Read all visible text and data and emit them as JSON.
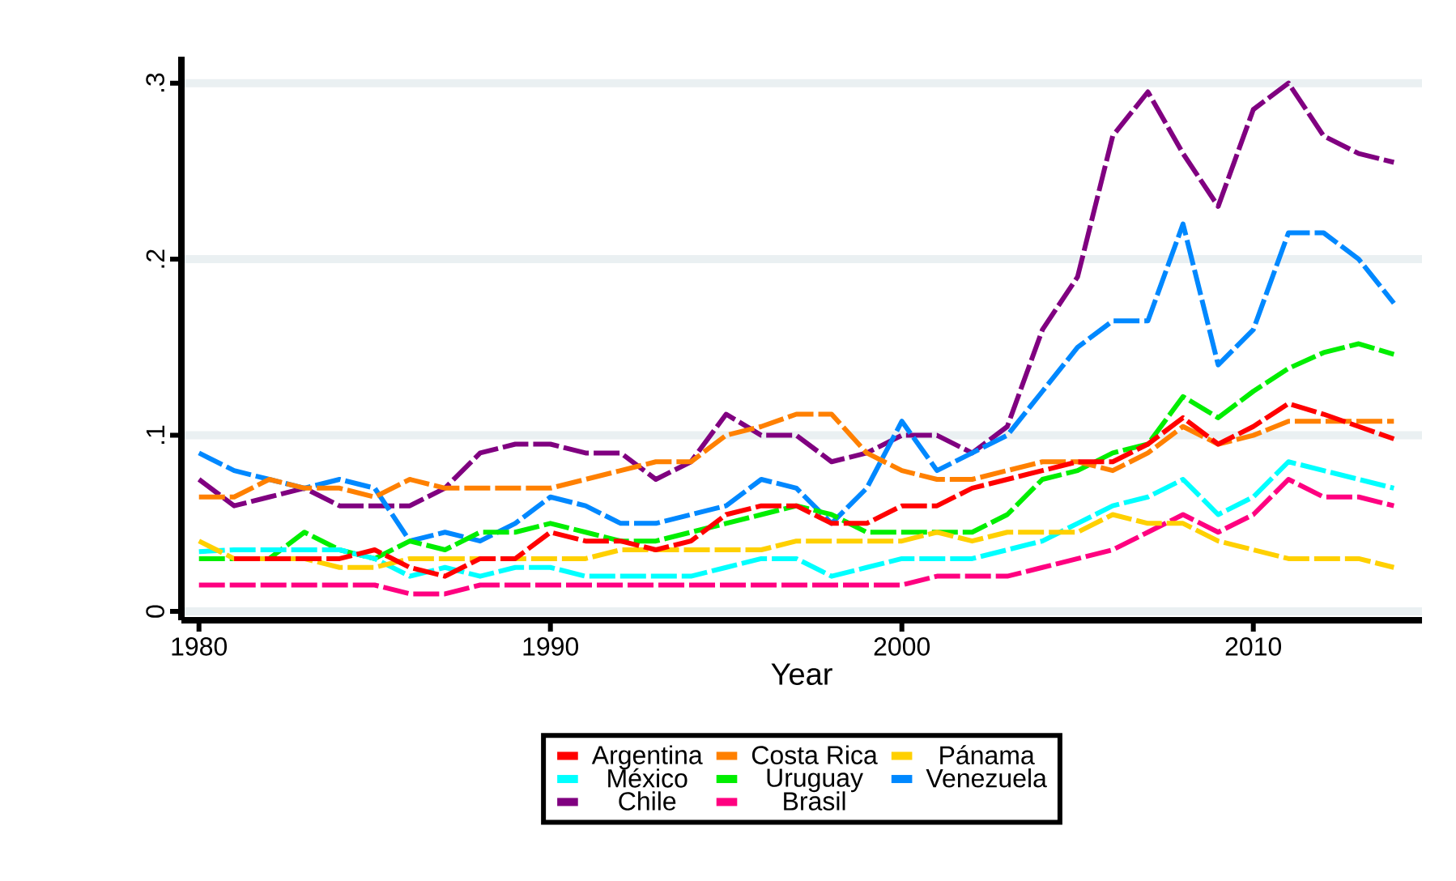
{
  "chart_data": {
    "type": "line",
    "xlabel": "Year",
    "x": [
      1980,
      1981,
      1982,
      1983,
      1984,
      1985,
      1986,
      1987,
      1988,
      1989,
      1990,
      1991,
      1992,
      1993,
      1994,
      1995,
      1996,
      1997,
      1998,
      1999,
      2000,
      2001,
      2002,
      2003,
      2004,
      2005,
      2006,
      2007,
      2008,
      2009,
      2010,
      2011,
      2012,
      2013,
      2014
    ],
    "xlim": [
      1979.5,
      2014.8
    ],
    "xticks": [
      1980,
      1990,
      2000,
      2010
    ],
    "ylim": [
      -0.005,
      0.315
    ],
    "yticks": [
      {
        "value": 0,
        "label": "0"
      },
      {
        "value": 0.1,
        "label": ".1"
      },
      {
        "value": 0.2,
        "label": ".2"
      },
      {
        "value": 0.3,
        "label": ".3"
      }
    ],
    "grid": "y",
    "legend": "bottom",
    "line_style": "dashed",
    "series": [
      {
        "name": "Costa Rica",
        "color": "#ff8000",
        "values": [
          0.065,
          0.065,
          0.075,
          0.07,
          0.07,
          0.065,
          0.075,
          0.07,
          0.07,
          0.07,
          0.07,
          0.075,
          0.08,
          0.085,
          0.085,
          0.1,
          0.105,
          0.112,
          0.112,
          0.09,
          0.08,
          0.075,
          0.075,
          0.08,
          0.085,
          0.085,
          0.08,
          0.09,
          0.105,
          0.095,
          0.1,
          0.108,
          0.108,
          0.108,
          0.108
        ]
      },
      {
        "name": "Pánama",
        "color": "#ffd000",
        "values": [
          0.04,
          0.03,
          0.03,
          0.03,
          0.025,
          0.025,
          0.03,
          0.03,
          0.03,
          0.03,
          0.03,
          0.03,
          0.035,
          0.035,
          0.035,
          0.035,
          0.035,
          0.04,
          0.04,
          0.04,
          0.04,
          0.045,
          0.04,
          0.045,
          0.045,
          0.045,
          0.055,
          0.05,
          0.05,
          0.04,
          0.035,
          0.03,
          0.03,
          0.03,
          0.025
        ]
      },
      {
        "name": "Argentina",
        "color": "#ff0000",
        "values": [
          null,
          0.03,
          0.03,
          0.03,
          0.03,
          0.035,
          0.025,
          0.02,
          0.03,
          0.03,
          0.045,
          0.04,
          0.04,
          0.035,
          0.04,
          0.055,
          0.06,
          0.06,
          0.05,
          0.05,
          0.06,
          0.06,
          0.07,
          0.075,
          0.08,
          0.085,
          0.085,
          0.095,
          0.11,
          0.095,
          0.105,
          0.118,
          0.112,
          0.105,
          0.098
        ]
      },
      {
        "name": "México",
        "color": "#00ffff",
        "values": [
          0.034,
          0.035,
          0.035,
          0.035,
          0.035,
          0.03,
          0.02,
          0.025,
          0.02,
          0.025,
          0.025,
          0.02,
          0.02,
          0.02,
          0.02,
          0.025,
          0.03,
          0.03,
          0.02,
          0.025,
          0.03,
          0.03,
          0.03,
          0.035,
          0.04,
          0.05,
          0.06,
          0.065,
          0.075,
          0.055,
          0.065,
          0.085,
          0.08,
          0.075,
          0.07
        ]
      },
      {
        "name": "Uruguay",
        "color": "#00ee00",
        "values": [
          0.03,
          0.03,
          0.03,
          0.045,
          0.035,
          0.03,
          0.04,
          0.035,
          0.045,
          0.045,
          0.05,
          0.045,
          0.04,
          0.04,
          0.045,
          0.05,
          0.055,
          0.06,
          0.055,
          0.045,
          0.045,
          0.045,
          0.045,
          0.055,
          0.075,
          0.08,
          0.09,
          0.095,
          0.122,
          0.11,
          0.125,
          0.138,
          0.147,
          0.152,
          0.146
        ]
      },
      {
        "name": "Venezuela",
        "color": "#0088ff",
        "values": [
          0.09,
          0.08,
          0.075,
          0.07,
          0.075,
          0.07,
          0.04,
          0.045,
          0.04,
          0.05,
          0.065,
          0.06,
          0.05,
          0.05,
          0.055,
          0.06,
          0.075,
          0.07,
          0.05,
          0.07,
          0.108,
          0.08,
          0.09,
          0.1,
          0.125,
          0.15,
          0.165,
          0.165,
          0.22,
          0.14,
          0.16,
          0.215,
          0.215,
          0.2,
          0.175
        ]
      },
      {
        "name": "Chile",
        "color": "#800080",
        "values": [
          0.075,
          0.06,
          0.065,
          0.07,
          0.06,
          0.06,
          0.06,
          0.07,
          0.09,
          0.095,
          0.095,
          0.09,
          0.09,
          0.075,
          0.085,
          0.112,
          0.1,
          0.1,
          0.085,
          0.09,
          0.1,
          0.1,
          0.09,
          0.105,
          0.16,
          0.19,
          0.27,
          0.295,
          0.26,
          0.23,
          0.285,
          0.3,
          0.27,
          0.26,
          0.255
        ]
      },
      {
        "name": "Brasil",
        "color": "#ff0080",
        "values": [
          0.015,
          0.015,
          0.015,
          0.015,
          0.015,
          0.015,
          0.01,
          0.01,
          0.015,
          0.015,
          0.015,
          0.015,
          0.015,
          0.015,
          0.015,
          0.015,
          0.015,
          0.015,
          0.015,
          0.015,
          0.015,
          0.02,
          0.02,
          0.02,
          0.025,
          0.03,
          0.035,
          0.045,
          0.055,
          0.045,
          0.055,
          0.075,
          0.065,
          0.065,
          0.06
        ]
      }
    ]
  }
}
